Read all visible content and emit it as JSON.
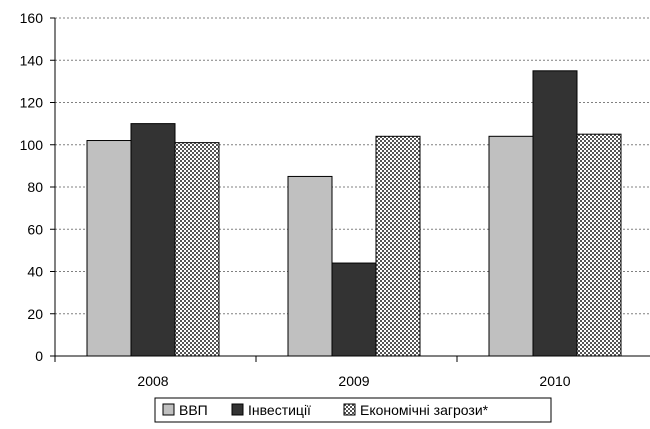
{
  "chart_data": {
    "type": "bar",
    "title": "",
    "xlabel": "",
    "ylabel": "",
    "categories": [
      "2008",
      "2009",
      "2010"
    ],
    "ylim": [
      0,
      160
    ],
    "yticks": [
      0,
      20,
      40,
      60,
      80,
      100,
      120,
      140,
      160
    ],
    "grid": true,
    "legend_position": "bottom",
    "series": [
      {
        "name": "ВВП",
        "values": [
          102,
          85,
          104
        ],
        "color": "#c0c0c0",
        "pattern": "solid"
      },
      {
        "name": "Інвестиції",
        "values": [
          110,
          44,
          135
        ],
        "color": "#333333",
        "pattern": "solid"
      },
      {
        "name": "Економічні загрози*",
        "values": [
          101,
          104,
          105
        ],
        "color": "#808080",
        "pattern": "checker"
      }
    ]
  }
}
